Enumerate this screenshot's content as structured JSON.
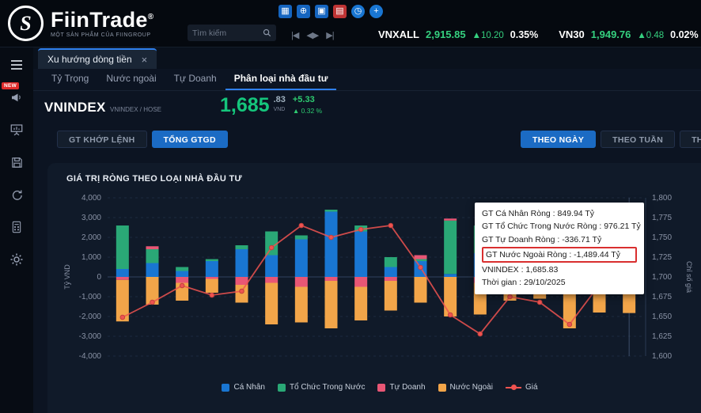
{
  "header": {
    "brand": {
      "name": "FiinTrade",
      "reg": "®",
      "logo_letter": "S",
      "tagline": "MỘT SẢN PHẨM CỦA FIINGROUP"
    },
    "search": {
      "placeholder": "Tìm kiếm"
    },
    "toolbar_icons": [
      {
        "name": "grid-icon",
        "glyph": "▦"
      },
      {
        "name": "search-plus-icon",
        "glyph": "⊕"
      },
      {
        "name": "calendar-add-icon",
        "glyph": "▣"
      },
      {
        "name": "calendar-alert-icon",
        "glyph": "▤"
      },
      {
        "name": "clock-icon",
        "glyph": "◷"
      },
      {
        "name": "add-icon",
        "glyph": "+"
      }
    ],
    "playback": {
      "prev": "|◀",
      "play": "◀▶",
      "next": "▶|"
    },
    "ticker": [
      {
        "symbol": "VNXALL",
        "value": "2,915.85",
        "change": "▲10.20",
        "pct": "0.35%"
      },
      {
        "symbol": "VN30",
        "value": "1,949.76",
        "change": "▲0.48",
        "pct": "0.02%"
      }
    ]
  },
  "sidebar": {
    "badge": "NEW"
  },
  "tabs": {
    "active": "Xu hướng dòng tiền",
    "close_glyph": "×"
  },
  "subnav": {
    "items": [
      {
        "label": "Tỷ Trọng"
      },
      {
        "label": "Nước ngoài"
      },
      {
        "label": "Tự Doanh"
      },
      {
        "label": "Phân loại nhà đầu tư"
      }
    ]
  },
  "symbol": {
    "name": "VNINDEX",
    "code": "VNINDEX / HOSE",
    "price_main": "1,685",
    "price_dec": ".83",
    "currency": "VND",
    "change": "+5.33",
    "change_pct": "▲ 0.32 %"
  },
  "filters": {
    "left": [
      {
        "label": "GT KHỚP LỆNH"
      },
      {
        "label": "TỔNG GTGD"
      }
    ],
    "right": [
      {
        "label": "THEO NGÀY"
      },
      {
        "label": "THEO TUẦN"
      },
      {
        "label": "THEO THÁNG"
      }
    ]
  },
  "panel": {
    "title": "GIÁ TRỊ RÒNG THEO LOẠI NHÀ ĐẦU TƯ"
  },
  "tooltip": {
    "rows": [
      {
        "text": "GT Cá Nhân Ròng : 849.94 Tỷ",
        "highlight": false
      },
      {
        "text": "GT Tổ Chức Trong Nước Ròng : 976.21 Tỷ",
        "highlight": false
      },
      {
        "text": "GT Tự Doanh Ròng : -336.71 Tỷ",
        "highlight": false
      },
      {
        "text": "GT Nước Ngoài Ròng : -1,489.44 Tỷ",
        "highlight": true
      },
      {
        "text": "VNINDEX : 1,685.83",
        "highlight": false
      },
      {
        "text": "Thời gian : 29/10/2025",
        "highlight": false
      }
    ]
  },
  "chart_data": {
    "type": "bar",
    "stacked": true,
    "title": "GIÁ TRỊ RÒNG THEO LOẠI NHÀ ĐẦU TƯ",
    "ylabel_left": "Tỷ VND",
    "ylabel_right": "Chỉ số giá",
    "ylim_left": [
      -4000,
      4000
    ],
    "ylim_right": [
      1600,
      1800
    ],
    "yticks_left": [
      "4,000",
      "3,000",
      "2,000",
      "1,000",
      "0",
      "-1,000",
      "-2,000",
      "-3,000",
      "-4,000"
    ],
    "yticks_right": [
      "1,800",
      "1,775",
      "1,750",
      "1,725",
      "1,700",
      "1,675",
      "1,650",
      "1,625",
      "1,600"
    ],
    "x_labels_visible": false,
    "grid": true,
    "legend_position": "bottom",
    "series": [
      {
        "name": "Cá Nhân",
        "color": "#1976d2",
        "values": [
          400,
          700,
          300,
          800,
          1400,
          1100,
          1900,
          3300,
          2300,
          500,
          800,
          150,
          1200,
          300,
          600,
          200,
          900,
          849.94
        ]
      },
      {
        "name": "Tổ Chức Trong Nước",
        "color": "#2aa876",
        "values": [
          2200,
          700,
          200,
          100,
          200,
          1200,
          200,
          100,
          300,
          500,
          100,
          2700,
          1400,
          200,
          100,
          1000,
          1000,
          976.21
        ]
      },
      {
        "name": "Tự Doanh",
        "color": "#e85675",
        "values": [
          -150,
          150,
          -300,
          -100,
          -400,
          -300,
          -500,
          -200,
          -500,
          -200,
          200,
          100,
          -300,
          -200,
          -300,
          -300,
          -300,
          -336.71
        ]
      },
      {
        "name": "Nước Ngoài",
        "color": "#f2a549",
        "values": [
          -2100,
          -1400,
          -900,
          -700,
          -900,
          -2100,
          -1800,
          -2400,
          -1700,
          -1500,
          -1300,
          -2000,
          -1600,
          -1000,
          -800,
          -2300,
          -1500,
          -1489.44
        ]
      }
    ],
    "line": {
      "name": "Giá",
      "color": "#ef5350",
      "values": [
        1649,
        1668,
        1689,
        1677,
        1682,
        1737,
        1765,
        1750,
        1760,
        1765,
        1712,
        1652,
        1628,
        1675,
        1668,
        1640,
        1690,
        1685.83
      ]
    }
  }
}
